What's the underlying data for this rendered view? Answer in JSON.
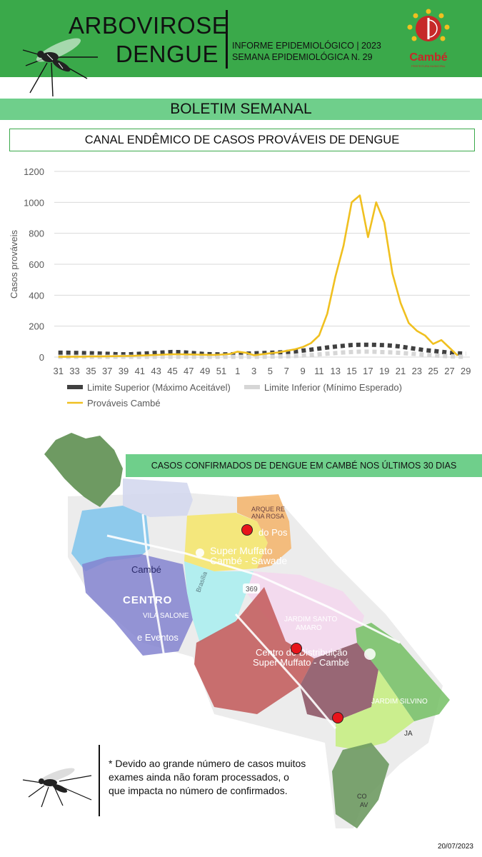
{
  "header": {
    "title_line1": "ARBOVIROSE",
    "title_line2": "DENGUE",
    "info_line1": "INFORME EPIDEMIOLÓGICO | 2023",
    "info_line2": "SEMANA EPIDEMIOLÓGICA  N. 29",
    "logo_text": "Cambé",
    "logo_subtext": "PREFEITURA MUNICIPAL"
  },
  "banner": {
    "label": "BOLETIM SEMANAL"
  },
  "chart_title": "CANAL ENDÊMICO DE CASOS PROVÁVEIS DE DENGUE",
  "chart_data": {
    "type": "line",
    "ylabel": "Casos prováveis",
    "ylim": [
      0,
      1200
    ],
    "yticks": [
      0,
      200,
      400,
      600,
      800,
      1000,
      1200
    ],
    "x": [
      31,
      32,
      33,
      34,
      35,
      36,
      37,
      38,
      39,
      40,
      41,
      42,
      43,
      44,
      45,
      46,
      47,
      48,
      49,
      50,
      51,
      52,
      1,
      2,
      3,
      4,
      5,
      6,
      7,
      8,
      9,
      10,
      11,
      12,
      13,
      14,
      15,
      16,
      17,
      18,
      19,
      20,
      21,
      22,
      23,
      24,
      25,
      26,
      27,
      28,
      29
    ],
    "xtick_labels": [
      "31",
      "33",
      "35",
      "37",
      "39",
      "41",
      "43",
      "45",
      "47",
      "49",
      "51",
      "1",
      "3",
      "5",
      "7",
      "9",
      "11",
      "13",
      "15",
      "17",
      "19",
      "21",
      "23",
      "25",
      "27",
      "29"
    ],
    "grid": true,
    "legend_position": "bottom",
    "series": [
      {
        "name": "Limite Superior (Máximo Aceitável)",
        "style": "dashed",
        "color": "#404040",
        "values": [
          28,
          28,
          27,
          26,
          25,
          23,
          21,
          19,
          18,
          19,
          21,
          24,
          27,
          30,
          33,
          32,
          28,
          24,
          20,
          18,
          17,
          18,
          20,
          22,
          24,
          26,
          28,
          30,
          33,
          36,
          42,
          48,
          55,
          62,
          68,
          73,
          78,
          80,
          80,
          79,
          77,
          74,
          68,
          60,
          52,
          45,
          40,
          34,
          28,
          24,
          22
        ]
      },
      {
        "name": "Limite Inferior (Mínimo Esperado)",
        "style": "dashed",
        "color": "#d6d6d6",
        "values": [
          2,
          2,
          2,
          2,
          2,
          2,
          2,
          2,
          2,
          2,
          2,
          2,
          2,
          2,
          2,
          2,
          2,
          2,
          2,
          2,
          2,
          2,
          2,
          2,
          2,
          2,
          3,
          4,
          5,
          7,
          10,
          13,
          18,
          22,
          26,
          30,
          33,
          35,
          35,
          34,
          32,
          30,
          27,
          23,
          19,
          15,
          11,
          8,
          5,
          3,
          2
        ]
      },
      {
        "name": "Prováveis Cambé",
        "style": "solid",
        "color": "#f0c020",
        "values": [
          2,
          2,
          3,
          3,
          4,
          4,
          5,
          6,
          7,
          8,
          10,
          12,
          14,
          16,
          18,
          18,
          17,
          16,
          15,
          14,
          16,
          20,
          35,
          28,
          12,
          18,
          25,
          30,
          40,
          50,
          65,
          90,
          140,
          280,
          520,
          720,
          1000,
          1045,
          775,
          1000,
          870,
          540,
          350,
          220,
          170,
          140,
          85,
          110,
          60,
          10,
          null
        ]
      }
    ]
  },
  "map": {
    "banner_label": "CASOS CONFIRMADOS DE DENGUE EM CAMBÉ NOS ÚLTIMOS 30 DIAS",
    "labels": {
      "parque_line1": "ARQUE RE",
      "parque_line2": "ANA ROSA",
      "posto": "do Pos",
      "super_muffato_sawade_line1": "Super Muffato",
      "super_muffato_sawade_line2": "Cambé - Sawade",
      "cambe": "Cambé",
      "centro": "CENTRO",
      "vila_salone": "VILA SALONE",
      "eventos": "e Eventos",
      "jardim_santo_amaro_line1": "JARDIM SANTO",
      "jardim_santo_amaro_line2": "AMARO",
      "centro_distribuicao_line1": "Centro de Distribuição",
      "centro_distribuicao_line2": "Super Muffato - Cambé",
      "jardim_silvino": "JARDIM SILVINO",
      "ja": "JA",
      "brasilia": "Brasília",
      "road_number": "369",
      "co": "CO",
      "av": "AV"
    },
    "colors": {
      "case_marker": "#e8141b"
    }
  },
  "note": "* Devido ao grande número de casos muitos exames ainda não foram processados, o que impacta no número de confirmados.",
  "date": "20/07/2023"
}
